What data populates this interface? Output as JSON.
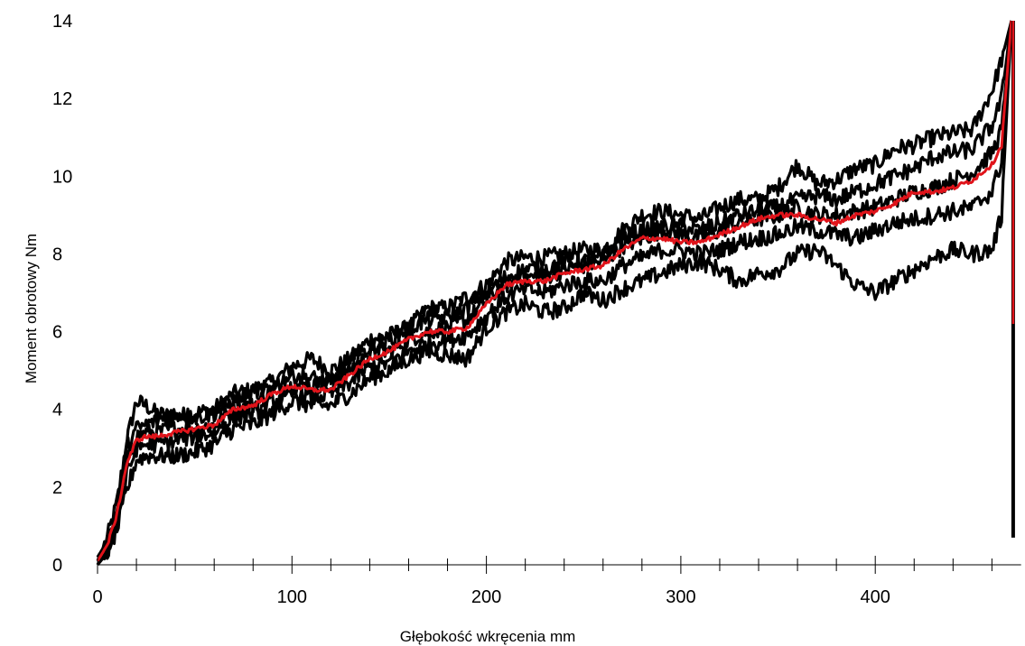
{
  "chart_data": {
    "type": "line",
    "title": "",
    "xlabel": "Głębokość wkręcenia mm",
    "ylabel": "Moment obrotowy Nm",
    "xlim": [
      0,
      475
    ],
    "ylim": [
      0,
      14
    ],
    "x_ticks": [
      0,
      100,
      200,
      300,
      400
    ],
    "y_ticks": [
      0,
      2,
      4,
      6,
      8,
      10,
      12,
      14
    ],
    "grid": false,
    "legend": "none",
    "series": [
      {
        "color": "#000000",
        "x": [
          0,
          5,
          10,
          15,
          20,
          25,
          30,
          40,
          50,
          60,
          70,
          80,
          90,
          100,
          110,
          120,
          130,
          140,
          150,
          160,
          170,
          180,
          190,
          200,
          210,
          220,
          230,
          240,
          250,
          260,
          270,
          280,
          290,
          300,
          310,
          320,
          330,
          340,
          350,
          360,
          370,
          380,
          390,
          400,
          410,
          420,
          430,
          440,
          450,
          460,
          465,
          470
        ],
        "values": [
          0.1,
          0.7,
          1.6,
          3.2,
          4.2,
          4.1,
          3.9,
          3.8,
          3.9,
          4.0,
          4.4,
          4.5,
          4.7,
          5.1,
          5.3,
          5.0,
          5.3,
          5.8,
          5.9,
          6.1,
          6.6,
          6.6,
          6.9,
          7.2,
          7.8,
          7.9,
          7.9,
          8.0,
          8.1,
          8.1,
          8.6,
          9.0,
          9.1,
          9.0,
          8.9,
          9.2,
          9.4,
          9.4,
          9.7,
          10.3,
          9.8,
          9.9,
          10.2,
          10.3,
          10.7,
          10.8,
          11.0,
          11.1,
          11.2,
          12.2,
          13.0,
          14.0
        ]
      },
      {
        "color": "#000000",
        "x": [
          0,
          5,
          10,
          15,
          20,
          25,
          30,
          40,
          50,
          60,
          70,
          80,
          90,
          100,
          110,
          120,
          130,
          140,
          150,
          160,
          170,
          180,
          190,
          200,
          210,
          220,
          230,
          240,
          250,
          260,
          270,
          280,
          290,
          300,
          310,
          320,
          330,
          340,
          350,
          360,
          370,
          380,
          390,
          400,
          410,
          420,
          430,
          440,
          450,
          460,
          465,
          470
        ],
        "values": [
          0.0,
          0.5,
          1.3,
          2.6,
          3.3,
          3.4,
          3.4,
          3.5,
          3.5,
          3.6,
          4.0,
          4.1,
          4.5,
          4.6,
          4.6,
          4.7,
          5.0,
          5.4,
          5.5,
          5.8,
          6.0,
          6.1,
          6.3,
          6.8,
          7.2,
          7.4,
          7.4,
          7.6,
          7.7,
          7.8,
          8.2,
          8.4,
          8.6,
          8.5,
          8.4,
          8.6,
          8.8,
          8.9,
          9.0,
          9.2,
          9.0,
          9.0,
          9.1,
          9.2,
          9.4,
          9.6,
          9.7,
          9.9,
          10.1,
          10.6,
          11.2,
          14.0
        ]
      },
      {
        "color": "#000000",
        "x": [
          0,
          5,
          10,
          15,
          20,
          25,
          30,
          40,
          50,
          60,
          70,
          80,
          90,
          100,
          110,
          120,
          130,
          140,
          150,
          160,
          170,
          180,
          190,
          200,
          210,
          220,
          230,
          240,
          250,
          260,
          270,
          280,
          290,
          300,
          310,
          320,
          330,
          340,
          350,
          360,
          370,
          380,
          390,
          400,
          410,
          420,
          430,
          440,
          450,
          460,
          465,
          470
        ],
        "values": [
          0.0,
          0.3,
          0.9,
          1.9,
          2.7,
          2.8,
          2.8,
          2.8,
          2.9,
          3.1,
          3.5,
          3.6,
          3.9,
          4.2,
          4.1,
          4.1,
          4.4,
          4.8,
          5.0,
          5.3,
          5.5,
          5.4,
          5.3,
          6.1,
          6.5,
          6.7,
          6.5,
          6.6,
          7.0,
          6.8,
          7.1,
          7.3,
          7.5,
          7.7,
          7.8,
          7.6,
          7.3,
          7.5,
          7.6,
          8.0,
          8.1,
          7.7,
          7.2,
          7.0,
          7.3,
          7.6,
          7.9,
          8.1,
          8.0,
          8.1,
          9.0,
          14.0
        ]
      },
      {
        "color": "#000000",
        "x": [
          0,
          5,
          10,
          15,
          20,
          25,
          30,
          40,
          50,
          60,
          70,
          80,
          90,
          100,
          110,
          120,
          130,
          140,
          150,
          160,
          170,
          180,
          190,
          200,
          210,
          220,
          230,
          240,
          250,
          260,
          270,
          280,
          290,
          300,
          310,
          320,
          330,
          340,
          350,
          360,
          370,
          380,
          390,
          400,
          410,
          420,
          430,
          440,
          450,
          460,
          465,
          470
        ],
        "values": [
          0.2,
          0.6,
          1.4,
          3.0,
          3.5,
          3.6,
          3.7,
          3.9,
          3.8,
          3.9,
          4.2,
          4.4,
          4.6,
          4.9,
          4.8,
          4.7,
          5.2,
          5.6,
          5.8,
          6.1,
          6.3,
          6.4,
          6.6,
          7.0,
          7.4,
          7.6,
          7.6,
          7.8,
          7.8,
          7.9,
          8.4,
          8.6,
          8.7,
          8.7,
          8.6,
          8.8,
          9.0,
          9.1,
          9.2,
          9.4,
          9.5,
          9.4,
          9.6,
          9.8,
          10.0,
          10.2,
          10.5,
          10.6,
          10.7,
          11.3,
          12.0,
          14.0
        ]
      },
      {
        "color": "#000000",
        "x": [
          0,
          5,
          10,
          15,
          20,
          25,
          30,
          40,
          50,
          60,
          70,
          80,
          90,
          100,
          110,
          120,
          130,
          140,
          150,
          160,
          170,
          180,
          190,
          200,
          210,
          220,
          230,
          240,
          250,
          260,
          270,
          280,
          290,
          300,
          310,
          320,
          330,
          340,
          350,
          360,
          370,
          380,
          390,
          400,
          410,
          420,
          430,
          440,
          450,
          460,
          465,
          470
        ],
        "values": [
          0.1,
          0.4,
          1.1,
          2.3,
          3.0,
          3.1,
          3.1,
          3.2,
          3.3,
          3.4,
          3.8,
          3.9,
          4.2,
          4.4,
          4.3,
          4.4,
          4.7,
          5.1,
          5.2,
          5.5,
          5.7,
          5.8,
          5.9,
          6.4,
          6.9,
          7.1,
          7.0,
          7.2,
          7.3,
          7.3,
          7.7,
          7.9,
          8.1,
          8.1,
          8.0,
          8.1,
          8.3,
          8.4,
          8.5,
          8.7,
          8.6,
          8.5,
          8.4,
          8.6,
          8.8,
          8.9,
          9.0,
          9.1,
          9.2,
          9.6,
          10.4,
          14.0
        ]
      },
      {
        "color": "#e0131a",
        "x": [
          0,
          5,
          10,
          15,
          20,
          25,
          30,
          40,
          50,
          60,
          70,
          80,
          90,
          100,
          110,
          120,
          130,
          140,
          150,
          160,
          170,
          180,
          190,
          200,
          210,
          220,
          230,
          240,
          250,
          260,
          270,
          280,
          290,
          300,
          310,
          320,
          330,
          340,
          350,
          360,
          370,
          380,
          390,
          400,
          410,
          420,
          430,
          440,
          450,
          460,
          465,
          470
        ],
        "values": [
          0.1,
          0.5,
          1.3,
          2.6,
          3.2,
          3.3,
          3.3,
          3.4,
          3.5,
          3.6,
          4.0,
          4.1,
          4.4,
          4.6,
          4.5,
          4.5,
          4.9,
          5.3,
          5.5,
          5.8,
          6.0,
          6.0,
          6.1,
          6.7,
          7.2,
          7.3,
          7.3,
          7.5,
          7.6,
          7.7,
          8.1,
          8.4,
          8.4,
          8.3,
          8.3,
          8.5,
          8.7,
          8.9,
          9.0,
          9.0,
          8.9,
          8.8,
          9.0,
          9.1,
          9.3,
          9.6,
          9.6,
          9.7,
          9.9,
          10.3,
          10.8,
          14.0
        ]
      }
    ]
  }
}
